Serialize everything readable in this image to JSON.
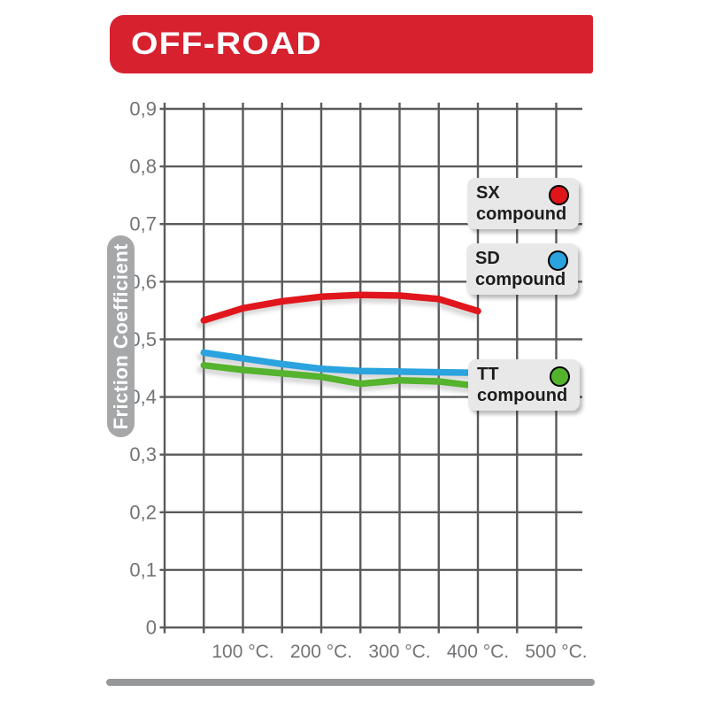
{
  "header": {
    "title": "OFF-ROAD",
    "banner_color": "#d7212f"
  },
  "chart_data": {
    "type": "line",
    "title": "OFF-ROAD",
    "ylabel": "Friction Coefficient",
    "xlabel": "",
    "xlim": [
      0,
      500
    ],
    "ylim": [
      0,
      0.9
    ],
    "x_grid_step": 50,
    "y_grid_step": 0.1,
    "grid": true,
    "legend_position": "right-inside",
    "x_ticks": [
      {
        "v": 100,
        "label": "100 °C."
      },
      {
        "v": 200,
        "label": "200 °C."
      },
      {
        "v": 300,
        "label": "300 °C."
      },
      {
        "v": 400,
        "label": "400 °C."
      },
      {
        "v": 500,
        "label": "500 °C."
      }
    ],
    "y_ticks": [
      {
        "v": 0,
        "label": "0"
      },
      {
        "v": 0.1,
        "label": "0,1"
      },
      {
        "v": 0.2,
        "label": "0,2"
      },
      {
        "v": 0.3,
        "label": "0,3"
      },
      {
        "v": 0.4,
        "label": "0,4"
      },
      {
        "v": 0.5,
        "label": "0,5"
      },
      {
        "v": 0.6,
        "label": "0,6"
      },
      {
        "v": 0.7,
        "label": "0,7"
      },
      {
        "v": 0.8,
        "label": "0,8"
      },
      {
        "v": 0.9,
        "label": "0,9"
      }
    ],
    "x": [
      50,
      100,
      150,
      200,
      250,
      300,
      350,
      400
    ],
    "series": [
      {
        "name": "SX compound",
        "color": "#e0151a",
        "values": [
          0.533,
          0.554,
          0.566,
          0.574,
          0.577,
          0.576,
          0.57,
          0.549
        ]
      },
      {
        "name": "SD compound",
        "color": "#2aa3de",
        "values": [
          0.477,
          0.467,
          0.457,
          0.449,
          0.445,
          0.444,
          0.443,
          0.442
        ]
      },
      {
        "name": "TT compound",
        "color": "#54b32d",
        "values": [
          0.455,
          0.447,
          0.441,
          0.435,
          0.423,
          0.429,
          0.427,
          0.419
        ]
      }
    ]
  },
  "legend": [
    {
      "line1": "SX",
      "line2": "compound",
      "color": "#e0151a"
    },
    {
      "line1": "SD",
      "line2": "compound",
      "color": "#2aa3de"
    },
    {
      "line1": "TT",
      "line2": "compound",
      "color": "#54b32d"
    }
  ],
  "colors": {
    "grid": "#595a5c",
    "tick_text": "#727376",
    "ylabel_pill": "#a6a7a9",
    "legend_card": "#e8e8e9",
    "bottom_bar": "#97989a"
  }
}
